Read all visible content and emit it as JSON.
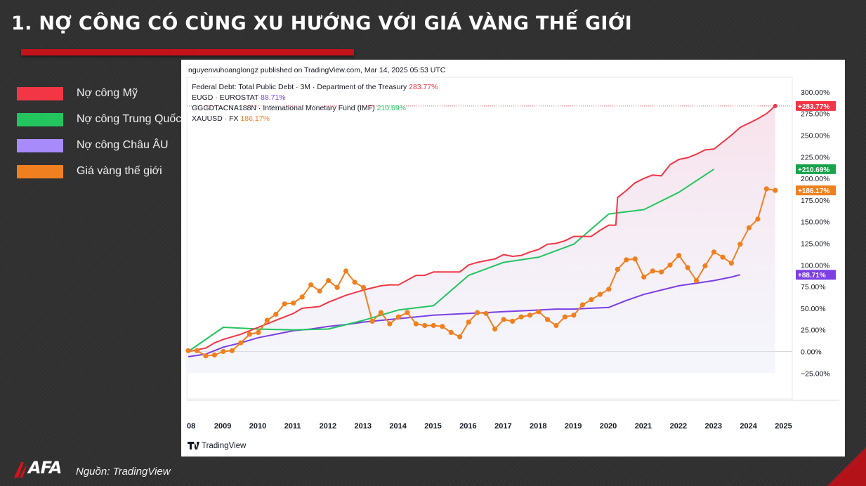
{
  "slide": {
    "title": "1. NỢ CÔNG CÓ CÙNG XU HƯỚNG VỚI GIÁ VÀNG THẾ GIỚI",
    "source": "Nguồn: TradingView",
    "logo": "AFA"
  },
  "legend": [
    {
      "label": "Nợ công Mỹ",
      "color": "#f23645"
    },
    {
      "label": "Nợ công Trung Quốc",
      "color": "#22c55e"
    },
    {
      "label": "Nợ công Châu ÂU",
      "color": "#a78bfa"
    },
    {
      "label": "Giá vàng thế giới",
      "color": "#f0801f"
    }
  ],
  "chart_header": {
    "published": "nguyenvuhoanglongz published on TradingView.com, Mar 14, 2025 05:53 UTC",
    "brand": "TradingView"
  },
  "chart_data": {
    "type": "line",
    "x_ticks": [
      "08",
      "2009",
      "2010",
      "2011",
      "2012",
      "2013",
      "2014",
      "2015",
      "2016",
      "2017",
      "2018",
      "2019",
      "2020",
      "2021",
      "2022",
      "2023",
      "2024",
      "2025"
    ],
    "y_ticks": [
      "300.00%",
      "275.00%",
      "250.00%",
      "225.00%",
      "200.00%",
      "175.00%",
      "150.00%",
      "125.00%",
      "100.00%",
      "75.00%",
      "50.00%",
      "25.00%",
      "0.00%",
      "−25.00%"
    ],
    "ylim": [
      -40,
      325
    ],
    "xlim": [
      2008.0,
      2025.3
    ],
    "series": [
      {
        "id": "us_debt",
        "legend_text": "Federal Debt: Total Public Debt · 3M · Department of the Treasury",
        "value_text": "283.77%",
        "badge": "+283.77%",
        "color": "#f23645",
        "points": [
          [
            2008,
            0
          ],
          [
            2008.25,
            2
          ],
          [
            2008.5,
            4
          ],
          [
            2008.75,
            10
          ],
          [
            2009,
            14
          ],
          [
            2009.5,
            20
          ],
          [
            2010,
            28
          ],
          [
            2010.5,
            36
          ],
          [
            2011,
            44
          ],
          [
            2011.25,
            50
          ],
          [
            2011.5,
            51
          ],
          [
            2011.75,
            52
          ],
          [
            2012,
            57
          ],
          [
            2012.5,
            65
          ],
          [
            2013,
            71
          ],
          [
            2013.5,
            76
          ],
          [
            2013.75,
            77
          ],
          [
            2014,
            77
          ],
          [
            2014.5,
            88
          ],
          [
            2014.75,
            88
          ],
          [
            2015,
            92
          ],
          [
            2015.5,
            92
          ],
          [
            2015.75,
            92
          ],
          [
            2016,
            100
          ],
          [
            2016.25,
            103
          ],
          [
            2016.5,
            105
          ],
          [
            2016.75,
            107
          ],
          [
            2017,
            112
          ],
          [
            2017.25,
            110
          ],
          [
            2017.5,
            111
          ],
          [
            2017.75,
            115
          ],
          [
            2018,
            118
          ],
          [
            2018.25,
            124
          ],
          [
            2018.5,
            125
          ],
          [
            2018.75,
            128
          ],
          [
            2019,
            133
          ],
          [
            2019.25,
            133
          ],
          [
            2019.5,
            133
          ],
          [
            2019.75,
            140
          ],
          [
            2020,
            146
          ],
          [
            2020.2,
            146
          ],
          [
            2020.25,
            178
          ],
          [
            2020.5,
            186
          ],
          [
            2020.75,
            195
          ],
          [
            2021,
            200
          ],
          [
            2021.25,
            204
          ],
          [
            2021.5,
            203
          ],
          [
            2021.75,
            216
          ],
          [
            2022,
            222
          ],
          [
            2022.25,
            224
          ],
          [
            2022.5,
            228
          ],
          [
            2022.75,
            233
          ],
          [
            2023,
            234
          ],
          [
            2023.25,
            242
          ],
          [
            2023.5,
            250
          ],
          [
            2023.75,
            259
          ],
          [
            2024,
            264
          ],
          [
            2024.25,
            269
          ],
          [
            2024.5,
            275
          ],
          [
            2024.75,
            283.77
          ]
        ]
      },
      {
        "id": "eu_debt",
        "legend_text": "EUGD · EUROSTAT",
        "value_text": "88.71%",
        "badge": "+88.71%",
        "color": "#7b3fe4",
        "points": [
          [
            2008,
            -6
          ],
          [
            2008.5,
            -3
          ],
          [
            2009,
            5
          ],
          [
            2009.5,
            10
          ],
          [
            2010,
            16
          ],
          [
            2010.5,
            20
          ],
          [
            2011,
            24
          ],
          [
            2011.5,
            26
          ],
          [
            2012,
            29
          ],
          [
            2012.5,
            31
          ],
          [
            2013,
            34
          ],
          [
            2013.5,
            36
          ],
          [
            2014,
            38
          ],
          [
            2014.5,
            40
          ],
          [
            2015,
            42
          ],
          [
            2015.5,
            43
          ],
          [
            2016,
            44
          ],
          [
            2016.5,
            45
          ],
          [
            2017,
            46
          ],
          [
            2017.5,
            47
          ],
          [
            2018,
            48
          ],
          [
            2018.5,
            49
          ],
          [
            2019,
            49
          ],
          [
            2019.5,
            50
          ],
          [
            2020,
            51
          ],
          [
            2020.5,
            59
          ],
          [
            2021,
            66
          ],
          [
            2021.5,
            71
          ],
          [
            2022,
            76
          ],
          [
            2022.5,
            79
          ],
          [
            2023,
            82
          ],
          [
            2023.5,
            86
          ],
          [
            2023.75,
            88.71
          ]
        ]
      },
      {
        "id": "cn_debt",
        "legend_text": "GGGDTACNA188N · International Monetary Fund (IMF)",
        "value_text": "210.69%",
        "badge": "+210.69%",
        "color": "#22c55e",
        "points": [
          [
            2008,
            0
          ],
          [
            2009,
            28
          ],
          [
            2010,
            26
          ],
          [
            2011,
            25
          ],
          [
            2012,
            26
          ],
          [
            2013,
            36
          ],
          [
            2014,
            48
          ],
          [
            2015,
            53
          ],
          [
            2016,
            88
          ],
          [
            2017,
            103
          ],
          [
            2018,
            109
          ],
          [
            2019,
            124
          ],
          [
            2020,
            159
          ],
          [
            2021,
            164
          ],
          [
            2022,
            184
          ],
          [
            2023,
            210.69
          ]
        ]
      },
      {
        "id": "gold",
        "legend_text": "XAUUSD · FX",
        "value_text": "186.17%",
        "badge": "+186.17%",
        "color": "#f0801f",
        "points": [
          [
            2008,
            1
          ],
          [
            2008.25,
            1
          ],
          [
            2008.5,
            -5
          ],
          [
            2008.75,
            -4
          ],
          [
            2009,
            0
          ],
          [
            2009.25,
            1
          ],
          [
            2009.5,
            10
          ],
          [
            2009.75,
            20
          ],
          [
            2010,
            22
          ],
          [
            2010.25,
            36
          ],
          [
            2010.5,
            43
          ],
          [
            2010.75,
            55
          ],
          [
            2011,
            56
          ],
          [
            2011.25,
            63
          ],
          [
            2011.5,
            77
          ],
          [
            2011.75,
            70
          ],
          [
            2012,
            82
          ],
          [
            2012.25,
            74
          ],
          [
            2012.5,
            93
          ],
          [
            2012.75,
            80
          ],
          [
            2013,
            74
          ],
          [
            2013.25,
            35
          ],
          [
            2013.5,
            45
          ],
          [
            2013.75,
            32
          ],
          [
            2014,
            40
          ],
          [
            2014.25,
            45
          ],
          [
            2014.5,
            32
          ],
          [
            2014.75,
            30
          ],
          [
            2015,
            30
          ],
          [
            2015.25,
            29
          ],
          [
            2015.5,
            22
          ],
          [
            2015.75,
            17
          ],
          [
            2016,
            34
          ],
          [
            2016.25,
            45
          ],
          [
            2016.5,
            44
          ],
          [
            2016.75,
            26
          ],
          [
            2017,
            37
          ],
          [
            2017.25,
            35
          ],
          [
            2017.5,
            40
          ],
          [
            2017.75,
            42
          ],
          [
            2018,
            46
          ],
          [
            2018.25,
            37
          ],
          [
            2018.5,
            30
          ],
          [
            2018.75,
            40
          ],
          [
            2019,
            42
          ],
          [
            2019.25,
            54
          ],
          [
            2019.5,
            60
          ],
          [
            2019.75,
            66
          ],
          [
            2020,
            72
          ],
          [
            2020.25,
            95
          ],
          [
            2020.5,
            106
          ],
          [
            2020.75,
            107
          ],
          [
            2021,
            86
          ],
          [
            2021.25,
            93
          ],
          [
            2021.5,
            92
          ],
          [
            2021.75,
            100
          ],
          [
            2022,
            111
          ],
          [
            2022.25,
            97
          ],
          [
            2022.5,
            82
          ],
          [
            2022.75,
            99
          ],
          [
            2023,
            115
          ],
          [
            2023.25,
            109
          ],
          [
            2023.5,
            102
          ],
          [
            2023.75,
            124
          ],
          [
            2024,
            143
          ],
          [
            2024.25,
            153
          ],
          [
            2024.5,
            188
          ],
          [
            2024.75,
            186.17
          ]
        ]
      }
    ]
  }
}
